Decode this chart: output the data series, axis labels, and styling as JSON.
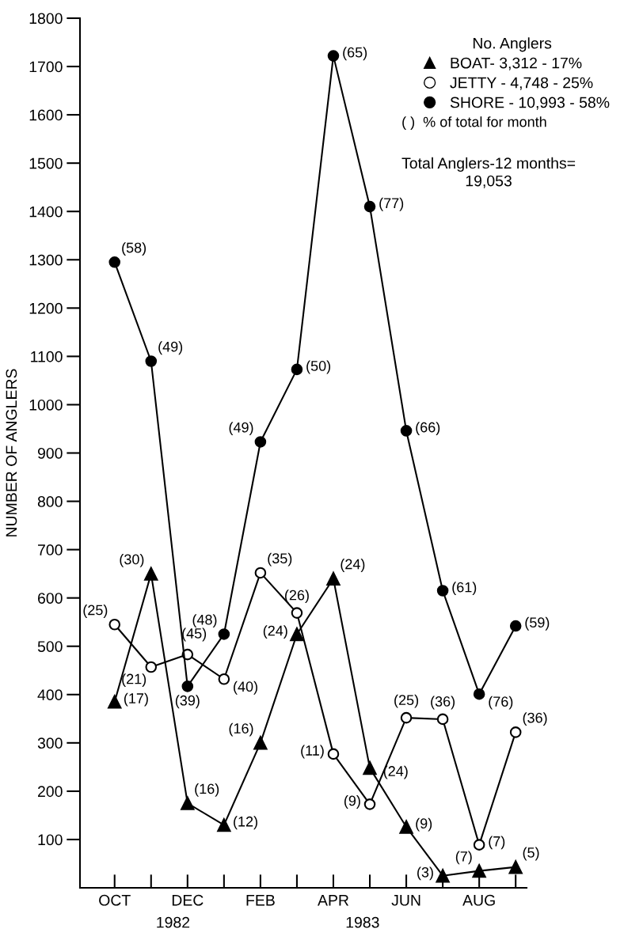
{
  "chart_data": {
    "type": "line",
    "ylabel": "NUMBER OF ANGLERS",
    "categories": [
      "OCT",
      null,
      "DEC",
      null,
      "FEB",
      null,
      "APR",
      null,
      "JUN",
      null,
      "AUG",
      null
    ],
    "ylim": [
      0,
      1800
    ],
    "yticks": [
      100,
      200,
      300,
      400,
      500,
      600,
      700,
      800,
      900,
      1000,
      1100,
      1200,
      1300,
      1400,
      1500,
      1600,
      1700,
      1800
    ],
    "legend": "top right",
    "legend_title": "No. Anglers",
    "grid": false,
    "line_style": "solid",
    "series": [
      {
        "name": "BOAT- 3,312 - 17%",
        "color": "#000000",
        "marker": "triangle",
        "values": [
          385,
          650,
          175,
          130,
          300,
          525,
          640,
          248,
          126,
          25,
          35,
          43
        ]
      },
      {
        "name": "JETTY - 4,748 - 25%",
        "color": "#ffffff",
        "marker": "circle",
        "values": [
          545,
          457,
          483,
          432,
          652,
          569,
          277,
          173,
          352,
          349,
          89,
          322
        ]
      },
      {
        "name": "SHORE - 10,993 - 58%",
        "color": "#000000",
        "marker": "circle",
        "values": [
          1295,
          1090,
          417,
          525,
          923,
          1073,
          1722,
          1410,
          946,
          615,
          401,
          542
        ]
      }
    ],
    "annotations": [
      "( )  % of total for month",
      "Total Anglers-12 months=\n19,053",
      "1982",
      "1983",
      {
        "text": "(17)",
        "x": "OCT",
        "y": 385
      },
      "(30)",
      {
        "text": "(16)",
        "x": "DEC",
        "y": 175
      },
      "(12)",
      {
        "text": "(16)",
        "x": "FEB",
        "y": 300
      },
      "(24)",
      {
        "text": "(24)",
        "x": "APR",
        "y": 640
      },
      "(24)",
      {
        "text": "(9)",
        "x": "JUN",
        "y": 126
      },
      "(3)",
      {
        "text": "(7)",
        "x": "AUG",
        "y": 35
      },
      "(5)",
      {
        "text": "(25)",
        "x": "OCT",
        "y": 545
      },
      "(21)",
      {
        "text": "(45)",
        "x": "DEC",
        "y": 483
      },
      "(40)",
      {
        "text": "(35)",
        "x": "FEB",
        "y": 652
      },
      "(26)",
      {
        "text": "(11)",
        "x": "APR",
        "y": 277
      },
      "(9)",
      {
        "text": "(25)",
        "x": "JUN",
        "y": 352
      },
      "(36)",
      {
        "text": "(7)",
        "x": "AUG",
        "y": 89
      },
      "(36)",
      {
        "text": "(58)",
        "x": "OCT",
        "y": 1295
      },
      "(49)",
      {
        "text": "(39)",
        "x": "DEC",
        "y": 417
      },
      "(48)",
      {
        "text": "(49)",
        "x": "FEB",
        "y": 923
      },
      "(50)",
      {
        "text": "(65)",
        "x": "APR",
        "y": 1722
      },
      "(77)",
      {
        "text": "(66)",
        "x": "JUN",
        "y": 946
      },
      "(61)",
      {
        "text": "(76)",
        "x": "AUG",
        "y": 401
      },
      "(59)"
    ]
  }
}
